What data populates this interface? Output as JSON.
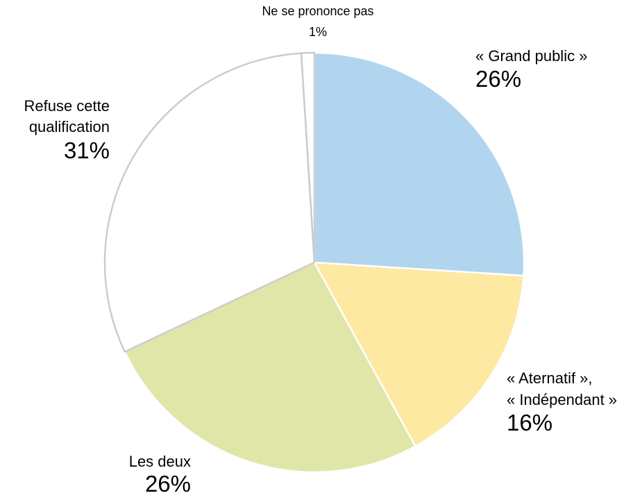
{
  "chart_data": {
    "type": "pie",
    "categories": [
      "« Grand public »",
      "« Aternatif »,\n« Indépendant »",
      "Les deux",
      "Refuse cette\nqualification",
      "Ne se prononce pas"
    ],
    "values": [
      26,
      16,
      26,
      31,
      1
    ],
    "value_labels": [
      "26%",
      "16%",
      "26%",
      "31%",
      "1%"
    ],
    "colors": [
      "#b1d5ee",
      "#fde9a1",
      "#e0e6a7",
      "#ffffff",
      "#ffffff"
    ]
  }
}
